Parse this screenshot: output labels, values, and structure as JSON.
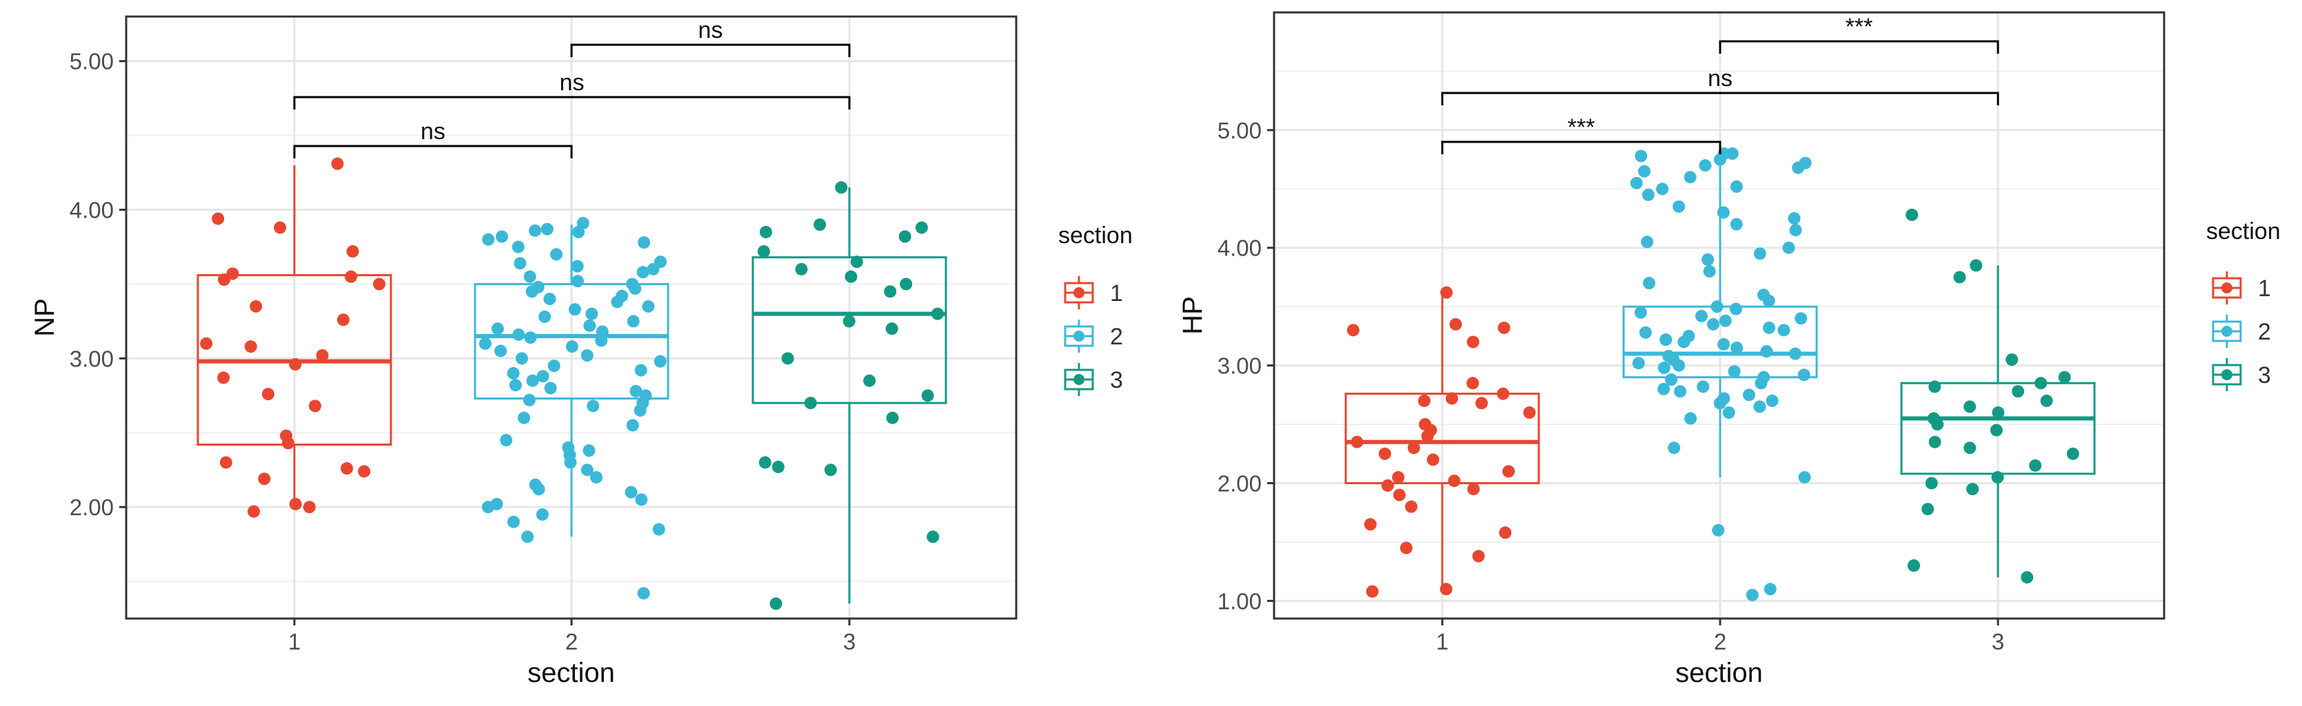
{
  "colors": {
    "s1": "#E8472F",
    "s2": "#3BB8D8",
    "s3": "#139A84",
    "grid": "#E6E6E6",
    "frame": "#333333",
    "text": "#333333"
  },
  "chart_data": [
    {
      "type": "boxplot",
      "title": "",
      "xlabel": "section",
      "ylabel": "NP",
      "categories": [
        "1",
        "2",
        "3"
      ],
      "ylim": [
        1.25,
        5.3
      ],
      "yticks": [
        2.0,
        3.0,
        4.0,
        5.0
      ],
      "ytick_labels": [
        "2.00",
        "3.00",
        "4.00",
        "5.00"
      ],
      "legend": {
        "title": "section",
        "labels": [
          "1",
          "2",
          "3"
        ],
        "position": "right"
      },
      "boxes": [
        {
          "category": "1",
          "q1": 2.42,
          "median": 2.98,
          "q3": 3.56,
          "whisker_low": 2.0,
          "whisker_high": 4.3
        },
        {
          "category": "2",
          "q1": 2.73,
          "median": 3.15,
          "q3": 3.5,
          "whisker_low": 1.8,
          "whisker_high": 3.9
        },
        {
          "category": "3",
          "q1": 2.7,
          "median": 3.3,
          "q3": 3.68,
          "whisker_low": 1.35,
          "whisker_high": 4.15
        }
      ],
      "points": [
        [
          4.31,
          3.94,
          3.88,
          3.72,
          3.57,
          3.55,
          3.53,
          3.5,
          3.35,
          3.26,
          3.1,
          3.08,
          3.02,
          2.96,
          2.87,
          2.76,
          2.68,
          2.48,
          2.43,
          2.3,
          2.26,
          2.24,
          2.19,
          2.02,
          2.0,
          1.97
        ],
        [
          3.91,
          3.87,
          3.86,
          3.85,
          3.82,
          3.8,
          3.78,
          3.75,
          3.7,
          3.65,
          3.64,
          3.62,
          3.6,
          3.58,
          3.55,
          3.52,
          3.5,
          3.48,
          3.47,
          3.45,
          3.42,
          3.4,
          3.38,
          3.35,
          3.33,
          3.3,
          3.28,
          3.25,
          3.22,
          3.2,
          3.18,
          3.16,
          3.14,
          3.12,
          3.1,
          3.08,
          3.05,
          3.02,
          3.0,
          2.98,
          2.95,
          2.92,
          2.9,
          2.88,
          2.85,
          2.82,
          2.8,
          2.78,
          2.75,
          2.72,
          2.7,
          2.68,
          2.65,
          2.6,
          2.55,
          2.45,
          2.4,
          2.38,
          2.35,
          2.3,
          2.25,
          2.2,
          2.15,
          2.12,
          2.1,
          2.05,
          2.02,
          2.0,
          1.95,
          1.9,
          1.85,
          1.8,
          1.42
        ],
        [
          4.15,
          3.9,
          3.88,
          3.85,
          3.82,
          3.72,
          3.65,
          3.6,
          3.55,
          3.5,
          3.45,
          3.3,
          3.25,
          3.2,
          3.0,
          2.85,
          2.75,
          2.7,
          2.6,
          2.3,
          2.27,
          2.25,
          1.8,
          1.35
        ]
      ],
      "significance": [
        {
          "from": "1",
          "to": "2",
          "label": "ns"
        },
        {
          "from": "1",
          "to": "3",
          "label": "ns"
        },
        {
          "from": "2",
          "to": "3",
          "label": "ns"
        }
      ]
    },
    {
      "type": "boxplot",
      "title": "",
      "xlabel": "section",
      "ylabel": "HP",
      "categories": [
        "1",
        "2",
        "3"
      ],
      "ylim": [
        0.85,
        6.0
      ],
      "yticks": [
        1.0,
        2.0,
        3.0,
        4.0,
        5.0
      ],
      "ytick_labels": [
        "1.00",
        "2.00",
        "3.00",
        "4.00",
        "5.00"
      ],
      "legend": {
        "title": "section",
        "labels": [
          "1",
          "2",
          "3"
        ],
        "position": "right"
      },
      "boxes": [
        {
          "category": "1",
          "q1": 2.0,
          "median": 2.35,
          "q3": 2.76,
          "whisker_low": 1.08,
          "whisker_high": 3.6
        },
        {
          "category": "2",
          "q1": 2.9,
          "median": 3.1,
          "q3": 3.5,
          "whisker_low": 2.05,
          "whisker_high": 4.8
        },
        {
          "category": "3",
          "q1": 2.08,
          "median": 2.55,
          "q3": 2.85,
          "whisker_low": 1.2,
          "whisker_high": 3.85
        }
      ],
      "points": [
        [
          3.62,
          3.35,
          3.32,
          3.3,
          3.2,
          2.85,
          2.76,
          2.72,
          2.7,
          2.68,
          2.6,
          2.5,
          2.45,
          2.4,
          2.35,
          2.3,
          2.25,
          2.2,
          2.1,
          2.05,
          2.02,
          1.98,
          1.95,
          1.9,
          1.8,
          1.65,
          1.58,
          1.45,
          1.38,
          1.1,
          1.08
        ],
        [
          4.8,
          4.8,
          4.78,
          4.75,
          4.72,
          4.7,
          4.68,
          4.65,
          4.6,
          4.55,
          4.52,
          4.5,
          4.45,
          4.35,
          4.3,
          4.25,
          4.2,
          4.15,
          4.05,
          4.0,
          3.95,
          3.9,
          3.8,
          3.7,
          3.6,
          3.55,
          3.5,
          3.48,
          3.45,
          3.42,
          3.4,
          3.38,
          3.35,
          3.32,
          3.3,
          3.28,
          3.25,
          3.22,
          3.2,
          3.18,
          3.15,
          3.12,
          3.1,
          3.08,
          3.05,
          3.02,
          3.0,
          2.98,
          2.95,
          2.92,
          2.9,
          2.88,
          2.85,
          2.82,
          2.8,
          2.78,
          2.75,
          2.72,
          2.7,
          2.68,
          2.65,
          2.6,
          2.55,
          2.3,
          2.05,
          1.6,
          1.1,
          1.05
        ],
        [
          4.28,
          3.85,
          3.75,
          3.05,
          2.9,
          2.85,
          2.82,
          2.78,
          2.7,
          2.65,
          2.6,
          2.55,
          2.5,
          2.45,
          2.35,
          2.3,
          2.25,
          2.15,
          2.05,
          2.0,
          1.95,
          1.78,
          1.3,
          1.3,
          1.2
        ]
      ],
      "significance": [
        {
          "from": "1",
          "to": "2",
          "label": "***"
        },
        {
          "from": "1",
          "to": "3",
          "label": "ns"
        },
        {
          "from": "2",
          "to": "3",
          "label": "***"
        }
      ]
    }
  ]
}
